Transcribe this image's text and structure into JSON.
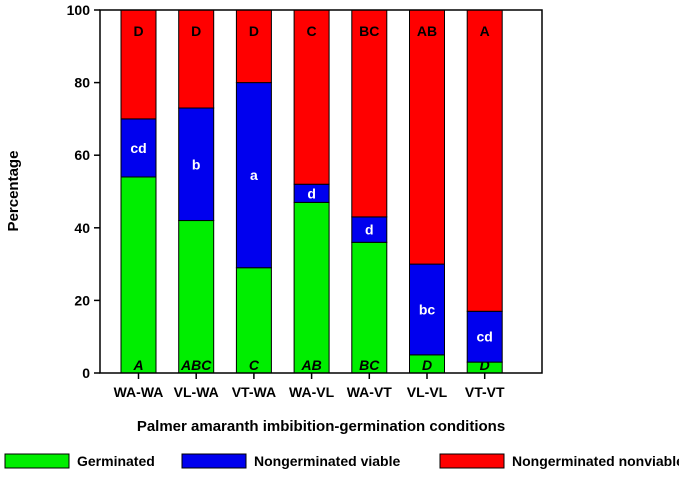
{
  "chart_data": {
    "type": "bar",
    "stacked": true,
    "xlabel": "Palmer amaranth imbibition-germination conditions",
    "ylabel": "Percentage",
    "ylim": [
      0,
      100
    ],
    "yticks": [
      "0",
      "20",
      "40",
      "60",
      "80",
      "100"
    ],
    "grid": false,
    "legend_position": "bottom",
    "categories": [
      "WA-WA",
      "VL-WA",
      "VT-WA",
      "WA-VL",
      "WA-VT",
      "VL-VL",
      "VT-VT"
    ],
    "series": [
      {
        "name": "Germinated",
        "color": "#00ee00",
        "values": [
          54,
          42,
          29,
          47,
          36,
          5,
          3
        ],
        "letters": [
          "A",
          "ABC",
          "C",
          "AB",
          "BC",
          "D",
          "D"
        ]
      },
      {
        "name": "Nongerminated viable",
        "color": "#0000ee",
        "values": [
          16,
          31,
          51,
          5,
          7,
          25,
          14
        ],
        "letters": [
          "cd",
          "b",
          "a",
          "d",
          "d",
          "bc",
          "cd"
        ]
      },
      {
        "name": "Nongerminated nonviable",
        "color": "#ff0000",
        "values": [
          30,
          27,
          20,
          48,
          57,
          70,
          83
        ],
        "letters": [
          "D",
          "D",
          "D",
          "C",
          "BC",
          "AB",
          "A"
        ]
      }
    ]
  }
}
